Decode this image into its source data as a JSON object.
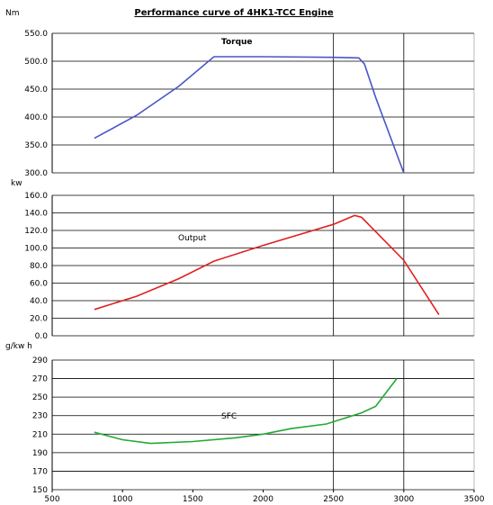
{
  "chart_data": {
    "title": "Performance curve of 4HK1-TCC  Engine",
    "type": "line",
    "x_ticks": [
      "500",
      "1000",
      "1500",
      "2000",
      "2500",
      "3000",
      "3500"
    ],
    "xlim": [
      500,
      3500
    ],
    "vertical_gridlines_at": [
      2500,
      3000
    ],
    "panels": [
      {
        "unit": "Nm",
        "series_label": "Torque",
        "color": "#4b55c8",
        "y_ticks": [
          "550.0",
          "500.0",
          "450.0",
          "400.0",
          "350.0",
          "300.0"
        ],
        "ylim": [
          300,
          550
        ],
        "x": [
          800,
          1100,
          1400,
          1650,
          2000,
          2500,
          2680,
          2720,
          2800,
          3000
        ],
        "y": [
          362,
          403,
          455,
          508,
          508,
          507,
          506,
          495,
          435,
          300
        ]
      },
      {
        "unit": "kw",
        "series_label": "Output",
        "color": "#e02020",
        "y_ticks": [
          "160.0",
          "140.0",
          "120.0",
          "100.0",
          "80.0",
          "60.0",
          "40.0",
          "20.0",
          "0.0"
        ],
        "ylim": [
          0,
          160
        ],
        "x": [
          800,
          1100,
          1400,
          1650,
          2000,
          2500,
          2650,
          2700,
          3000,
          3250
        ],
        "y": [
          30,
          45,
          65,
          85,
          103,
          127,
          137,
          135,
          86,
          24
        ]
      },
      {
        "unit": "g/kw h",
        "series_label": "SFC",
        "color": "#22aa33",
        "y_ticks": [
          "290",
          "270",
          "250",
          "230",
          "210",
          "190",
          "170",
          "150"
        ],
        "ylim": [
          150,
          290
        ],
        "x": [
          800,
          1000,
          1200,
          1500,
          1800,
          2000,
          2200,
          2450,
          2700,
          2800,
          2950
        ],
        "y": [
          212,
          204,
          200,
          202,
          206,
          210,
          216,
          221,
          233,
          240,
          270
        ]
      }
    ]
  }
}
